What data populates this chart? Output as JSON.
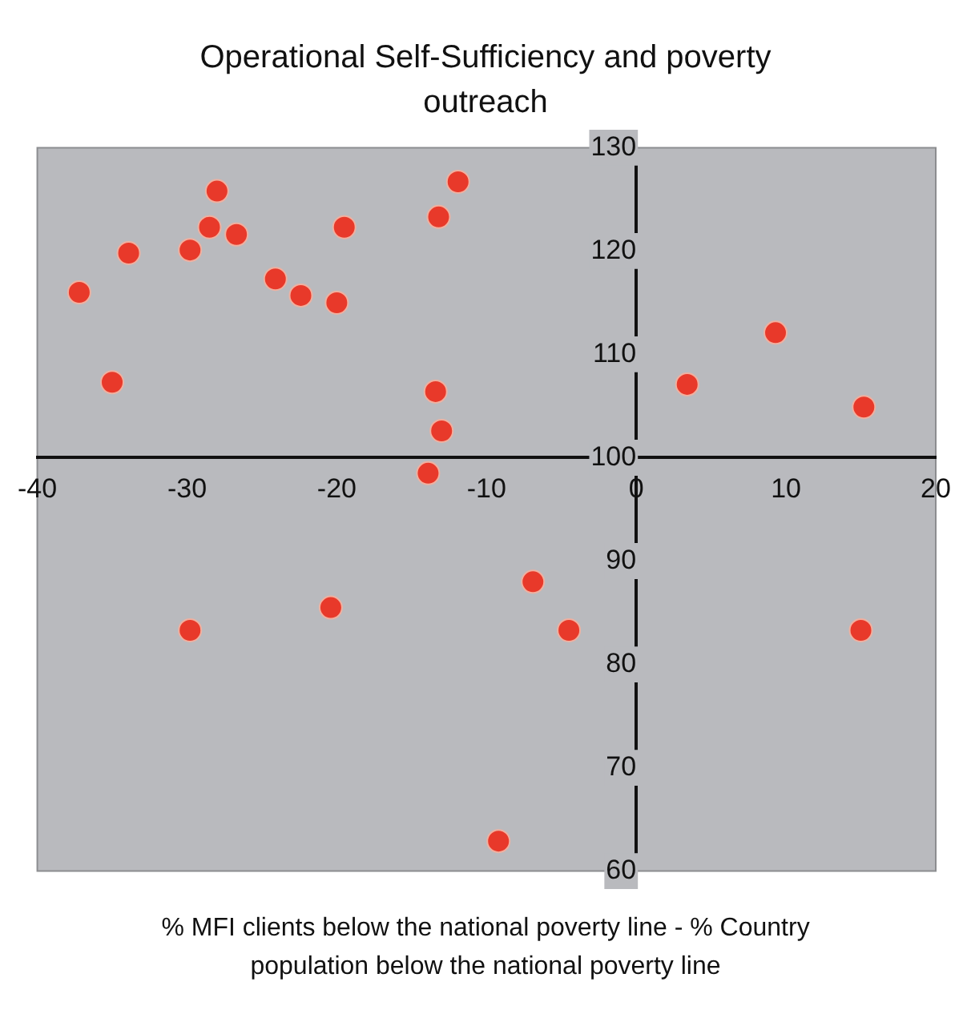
{
  "chart_data": {
    "type": "scatter",
    "title": "Operational Self-Sufficiency and poverty outreach",
    "xlabel": "% MFI clients below the national poverty line - % Country population below the national poverty line",
    "series": [
      {
        "color": "#e8392a",
        "x": [
          -37.2,
          -35.0,
          -33.9,
          -29.8,
          -28.5,
          -28.0,
          -26.7,
          -24.1,
          -22.4,
          -20.0,
          -19.5,
          -13.2,
          -11.9,
          -13.4,
          -13.0,
          -13.9,
          3.4,
          9.3,
          15.2,
          -29.8,
          -20.4,
          -6.9,
          -4.5,
          15.0,
          -9.2
        ],
        "values": [
          116.0,
          107.3,
          119.8,
          120.1,
          122.3,
          125.8,
          121.6,
          117.3,
          115.7,
          115.0,
          122.3,
          123.3,
          126.7,
          106.4,
          102.6,
          98.5,
          107.1,
          112.1,
          104.9,
          83.3,
          85.5,
          88.0,
          83.3,
          83.3,
          62.9
        ]
      }
    ],
    "xlim": [
      -40,
      20
    ],
    "xticks": [
      -40,
      -30,
      -20,
      -10,
      0,
      10,
      20
    ],
    "ylim": [
      60,
      130
    ],
    "yticks": [
      60,
      70,
      80,
      90,
      100,
      110,
      120,
      130
    ],
    "grid": false,
    "legend": false,
    "marker": "circle"
  }
}
